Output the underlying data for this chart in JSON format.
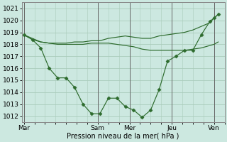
{
  "background_color": "#cce8e0",
  "grid_color": "#aaccbb",
  "line_color": "#2d6b2d",
  "marker_color": "#2d6b2d",
  "xlabel": "Pression niveau de la mer( hPa )",
  "ylim": [
    1011.5,
    1021.5
  ],
  "yticks": [
    1012,
    1013,
    1014,
    1015,
    1016,
    1017,
    1018,
    1019,
    1020,
    1021
  ],
  "xtick_labels": [
    "Mar",
    "",
    "Sam",
    "Mer",
    "",
    "Jeu",
    "",
    "Ven"
  ],
  "xtick_positions": [
    0,
    1.75,
    3.5,
    5.0,
    6.0,
    7.0,
    8.0,
    9.0
  ],
  "xlim": [
    -0.1,
    9.5
  ],
  "line1_main": {
    "x": [
      0.0,
      0.4,
      0.8,
      1.2,
      1.6,
      2.0,
      2.4,
      2.8,
      3.2,
      3.6,
      4.0,
      4.4,
      4.8,
      5.2,
      5.6,
      6.0,
      6.4,
      6.8,
      7.2,
      7.6,
      8.0,
      8.4,
      8.8,
      9.0,
      9.2
    ],
    "y": [
      1018.8,
      1018.4,
      1017.7,
      1016.0,
      1015.2,
      1015.2,
      1014.4,
      1013.0,
      1012.2,
      1012.2,
      1013.5,
      1013.5,
      1012.8,
      1012.5,
      1011.9,
      1012.5,
      1014.2,
      1016.6,
      1017.0,
      1017.5,
      1017.5,
      1018.8,
      1019.9,
      1020.2,
      1020.5
    ]
  },
  "line2_upper": {
    "x": [
      0.0,
      0.4,
      0.8,
      1.2,
      1.6,
      2.0,
      2.4,
      2.8,
      3.2,
      3.6,
      4.0,
      4.4,
      4.8,
      5.2,
      5.6,
      6.0,
      6.4,
      6.8,
      7.2,
      7.6,
      8.0,
      8.4,
      8.8,
      9.0,
      9.2
    ],
    "y": [
      1018.8,
      1018.4,
      1018.2,
      1018.1,
      1018.1,
      1018.1,
      1018.2,
      1018.2,
      1018.3,
      1018.3,
      1018.5,
      1018.6,
      1018.7,
      1018.6,
      1018.5,
      1018.5,
      1018.7,
      1018.8,
      1018.9,
      1019.0,
      1019.2,
      1019.5,
      1019.8,
      1020.2,
      1020.5
    ]
  },
  "line3_flat": {
    "x": [
      0.0,
      0.4,
      0.8,
      1.2,
      1.6,
      2.0,
      2.4,
      2.8,
      3.2,
      3.6,
      4.0,
      4.4,
      4.8,
      5.2,
      5.6,
      6.0,
      6.4,
      6.8,
      7.2,
      7.6,
      8.0,
      8.4,
      8.8,
      9.0,
      9.2
    ],
    "y": [
      1018.8,
      1018.5,
      1018.2,
      1018.1,
      1018.0,
      1018.0,
      1018.0,
      1018.0,
      1018.1,
      1018.1,
      1018.1,
      1018.0,
      1017.9,
      1017.8,
      1017.6,
      1017.5,
      1017.5,
      1017.5,
      1017.5,
      1017.5,
      1017.6,
      1017.7,
      1017.9,
      1018.0,
      1018.2
    ]
  },
  "vlines_x": [
    0.0,
    3.5,
    5.0,
    7.0,
    9.0
  ],
  "vline_color": "#666666"
}
